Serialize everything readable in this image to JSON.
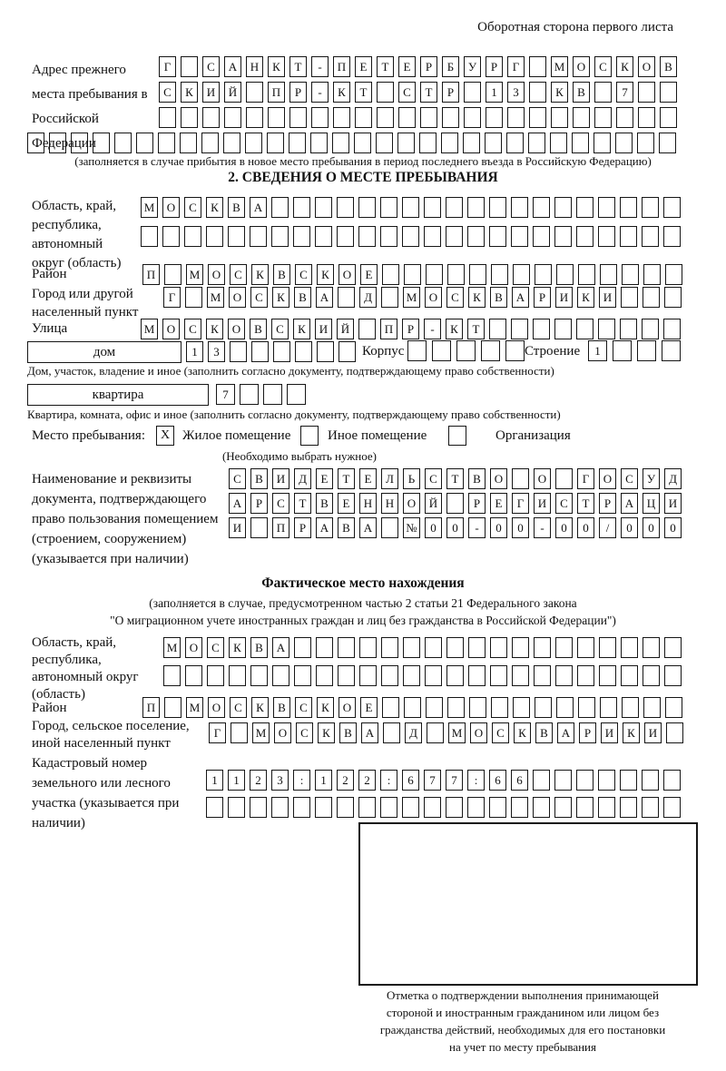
{
  "header": {
    "note": "Оборотная сторона первого листа"
  },
  "prev_address": {
    "label": "Адрес прежнего места пребывания в Российской Федерации",
    "rows": [
      {
        "count": 24,
        "chars": "Г САНКТ-ПЕТЕРБУРГ МОСКОВ"
      },
      {
        "count": 24,
        "chars": "СКИЙ ПР-КТ СТР 13 КВ 7"
      },
      {
        "count": 24,
        "chars": ""
      },
      {
        "count": 30,
        "chars": ""
      }
    ],
    "note": "(заполняется в случае прибытия в новое место пребывания в период последнего въезда в Российскую Федерацию)"
  },
  "section2": {
    "title": "2. СВЕДЕНИЯ О МЕСТЕ ПРЕБЫВАНИЯ",
    "region": {
      "label": "Область, край, республика, автономный округ (область)",
      "rows": [
        {
          "count": 25,
          "chars": "МОСКВА"
        },
        {
          "count": 25,
          "chars": ""
        }
      ]
    },
    "district": {
      "label": "Район",
      "row": {
        "count": 25,
        "chars": "П МОСКВСКОЕ"
      }
    },
    "city": {
      "label": "Город или другой населенный пункт",
      "row": {
        "count": 24,
        "chars": "Г МОСКВА Д МОСКВАРИКИ"
      }
    },
    "street": {
      "label": "Улица",
      "row": {
        "count": 25,
        "chars": "МОСКОВСКИЙ ПР-КТ"
      }
    },
    "house": {
      "box_label": "дом",
      "cells": {
        "count": 8,
        "chars": "13"
      },
      "korpus_label": "Корпус",
      "korpus_cells": {
        "count": 5,
        "chars": ""
      },
      "stroenie_label": "Строение",
      "stroenie_cells": {
        "count": 4,
        "chars": "1"
      },
      "note": "Дом, участок, владение и иное (заполнить согласно документу, подтверждающему право собственности)"
    },
    "apartment": {
      "box_label": "квартира",
      "cells": {
        "count": 4,
        "chars": "7"
      },
      "note": "Квартира, комната, офис и иное (заполнить согласно документу, подтверждающему право собственности)"
    },
    "stay_type": {
      "label": "Место пребывания:",
      "options": [
        {
          "label": "Жилое помещение",
          "value": "X"
        },
        {
          "label": "Иное помещение",
          "value": ""
        },
        {
          "label": "Организация",
          "value": ""
        }
      ],
      "note": "(Необходимо выбрать нужное)"
    },
    "document": {
      "label": "Наименование и реквизиты документа, подтверждающего право пользования помещением (строением, сооружением) (указывается при наличии)",
      "rows": [
        {
          "count": 21,
          "chars": "СВИДЕТЕЛЬСТВО О ГОСУД"
        },
        {
          "count": 21,
          "chars": "АРСТВЕННОЙ РЕГИСТРАЦИ"
        },
        {
          "count": 21,
          "chars": "И ПРАВА №00-00-00/000"
        }
      ]
    }
  },
  "actual_location": {
    "title": "Фактическое место нахождения",
    "note_line1": "(заполняется в случае, предусмотренном частью 2 статьи 21 Федерального закона",
    "note_line2": "\"О миграционном учете иностранных граждан и лиц без гражданства в Российской Федерации\")",
    "region": {
      "label": "Область, край, республика, автономный округ (область)",
      "rows": [
        {
          "count": 24,
          "chars": "МОСКВА"
        },
        {
          "count": 24,
          "chars": ""
        }
      ]
    },
    "district": {
      "label": "Район",
      "row": {
        "count": 25,
        "chars": "П МОСКВСКОЕ"
      }
    },
    "city": {
      "label": "Город, сельское поселение, иной населенный пункт",
      "row": {
        "count": 22,
        "chars": "Г МОСКВА Д МОСКВАРИКИ"
      }
    },
    "cadastral": {
      "label": "Кадастровый номер земельного или лесного участка (указывается при наличии)",
      "rows": [
        {
          "count": 22,
          "chars": "1123:122:677:66"
        },
        {
          "count": 22,
          "chars": ""
        }
      ]
    },
    "stamp_note": "Отметка о подтверждении выполнения принимающей стороной и иностранным гражданином или лицом без гражданства действий, необходимых для его постановки на учет по месту пребывания"
  }
}
